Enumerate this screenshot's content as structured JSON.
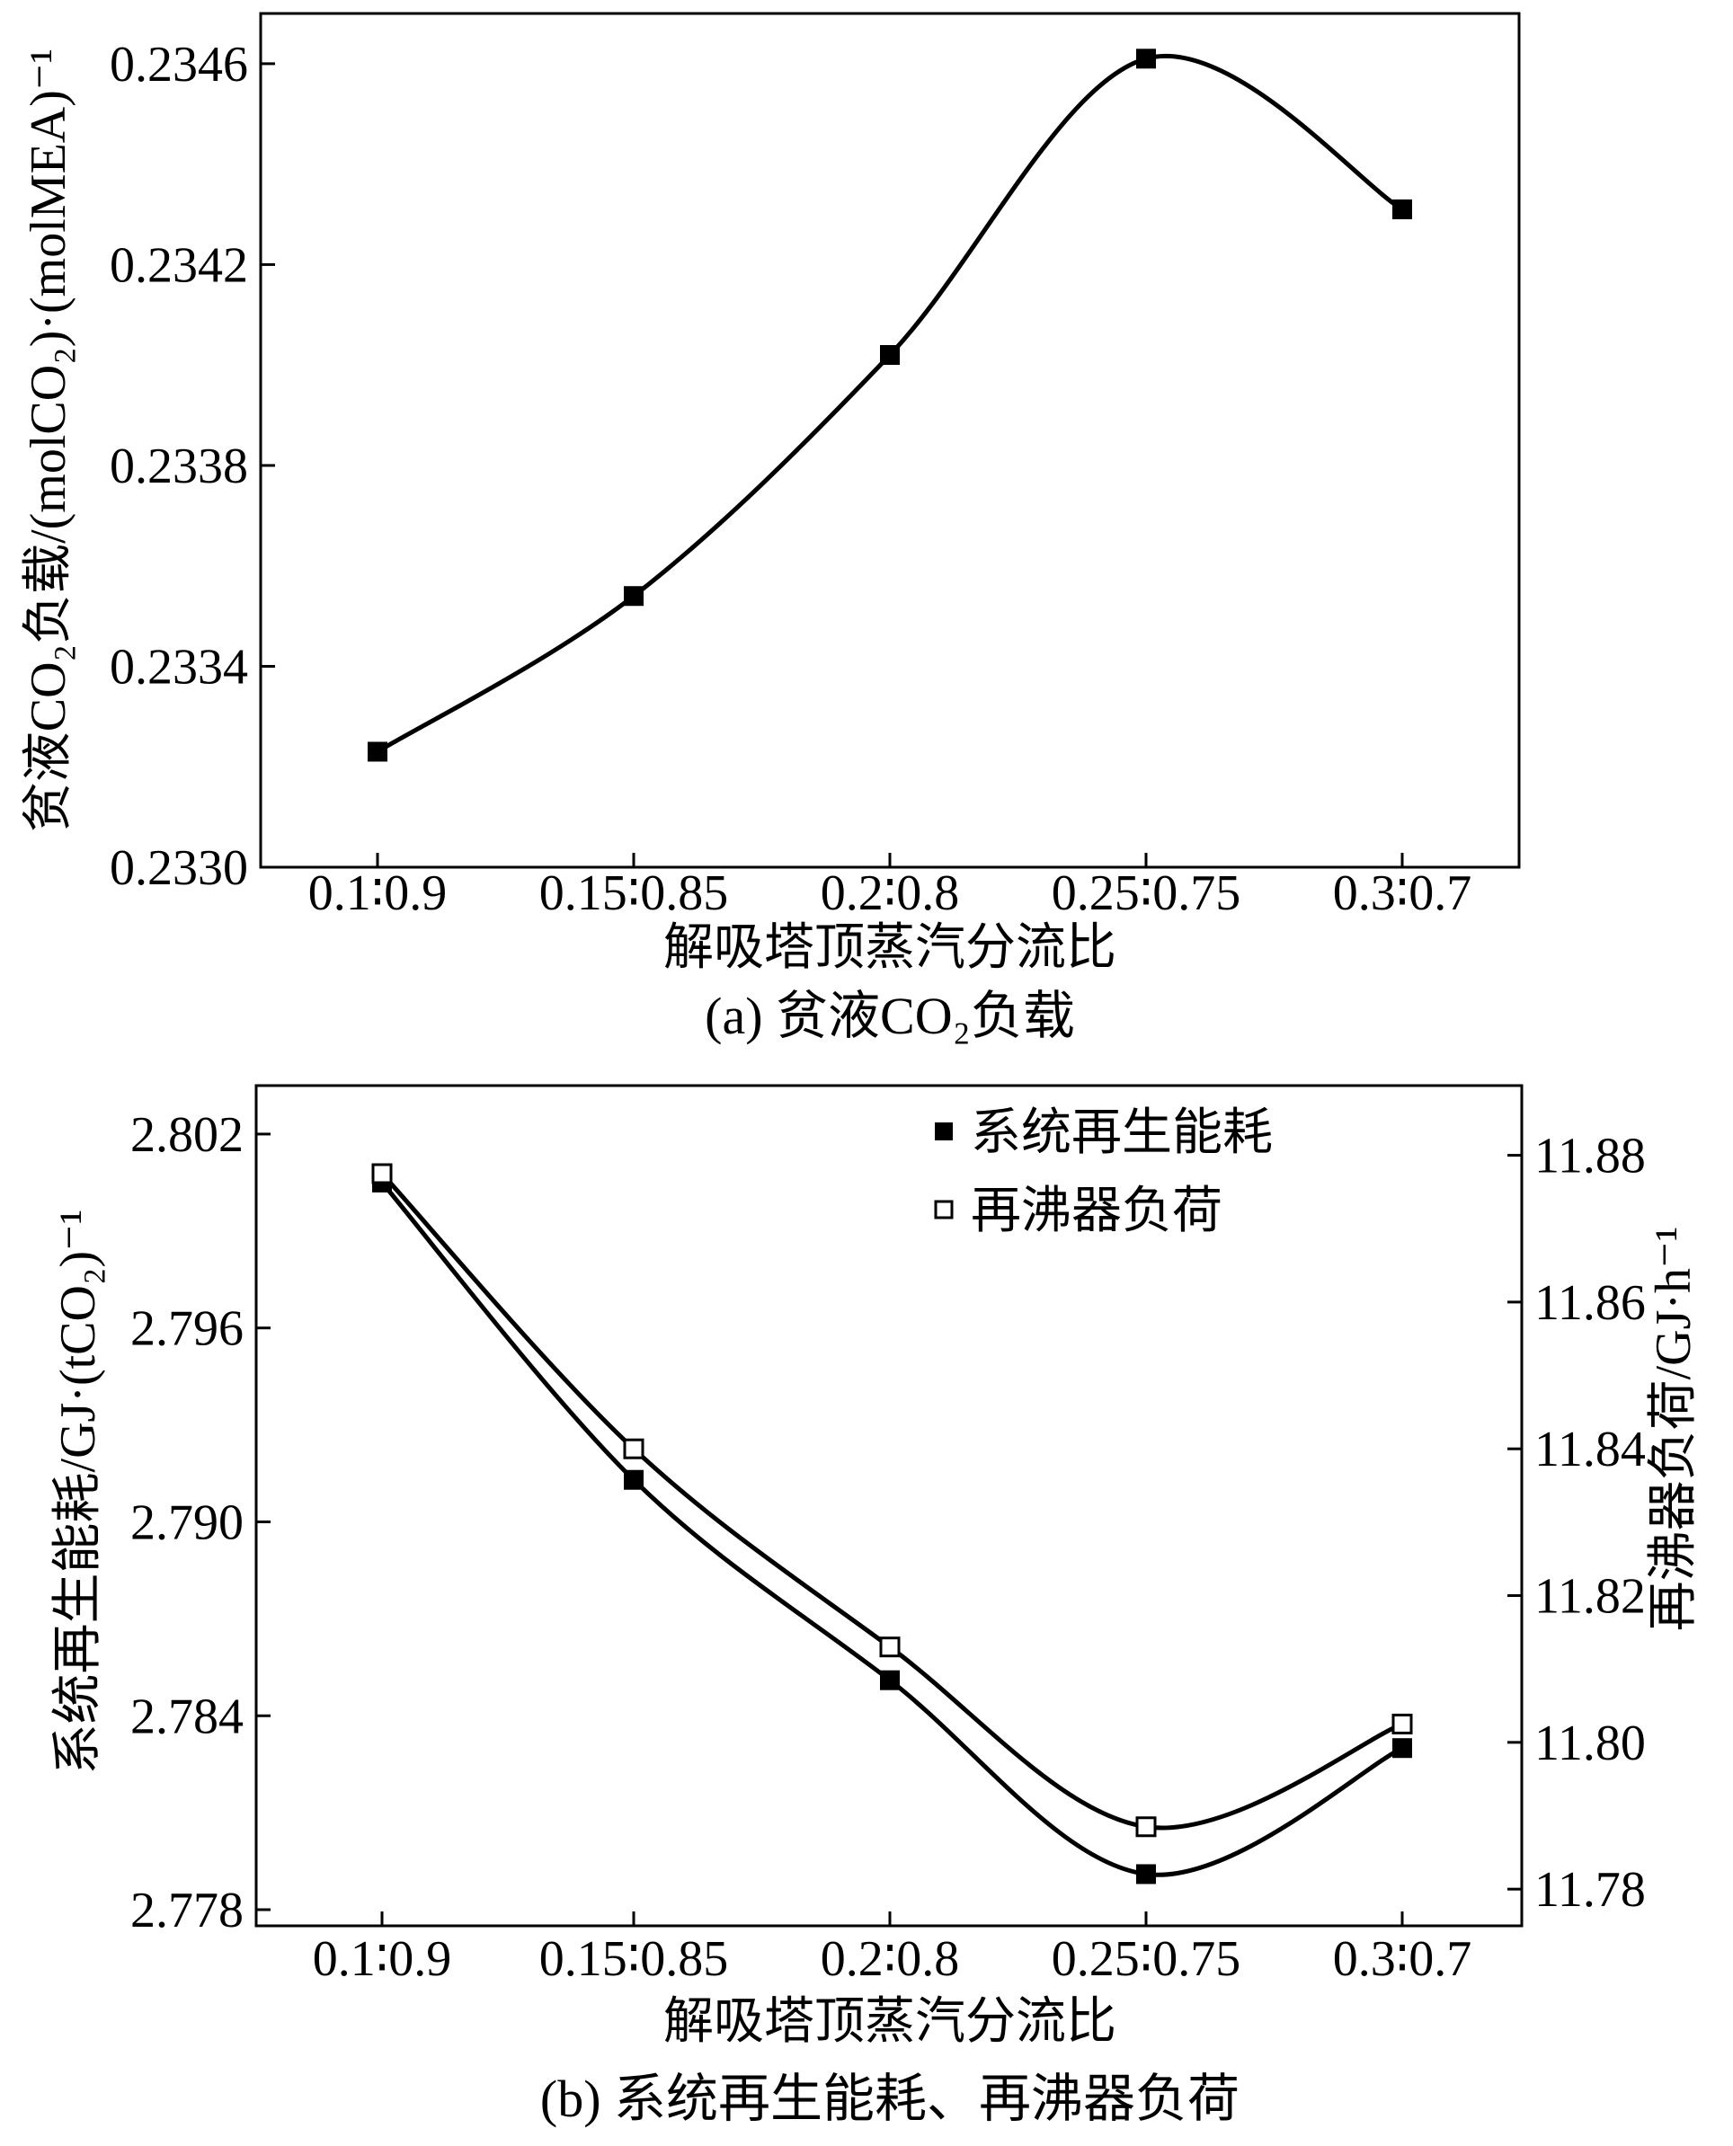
{
  "chart_data": [
    {
      "type": "line",
      "caption": "(a) 贫液CO₂负载",
      "categories": [
        "0.1∶0.9",
        "0.15∶0.85",
        "0.2∶0.8",
        "0.25∶0.75",
        "0.3∶0.7"
      ],
      "xlabel": "解吸塔顶蒸汽分流比",
      "ylabel": "贫液CO₂负载/(molCO₂)·(molMEA)⁻¹",
      "ylim": [
        0.233,
        0.2347
      ],
      "yticks": [
        "0.2330",
        "0.2334",
        "0.2338",
        "0.2342",
        "0.2346"
      ],
      "series": [
        {
          "name": "贫液CO₂负载",
          "marker": "filled-square",
          "values": [
            0.23323,
            0.23354,
            0.23402,
            0.23461,
            0.23431
          ]
        }
      ]
    },
    {
      "type": "line",
      "caption": "(b) 系统再生能耗、再沸器负荷",
      "categories": [
        "0.1∶0.9",
        "0.15∶0.85",
        "0.2∶0.8",
        "0.25∶0.75",
        "0.3∶0.7"
      ],
      "xlabel": "解吸塔顶蒸汽分流比",
      "ylabel_left": "系统再生能耗/GJ·(tCO₂)⁻¹",
      "ylabel_right": "再沸器负荷/GJ·h⁻¹",
      "ylim_left": [
        2.7775,
        2.8035
      ],
      "ylim_right": [
        11.775,
        11.8895
      ],
      "yticks_left": [
        "2.778",
        "2.784",
        "2.790",
        "2.796",
        "2.802"
      ],
      "yticks_right": [
        "11.78",
        "11.80",
        "11.82",
        "11.84",
        "11.86",
        "11.88"
      ],
      "legend": {
        "position": "top-right",
        "entries": [
          "系统再生能耗",
          "再沸器负荷"
        ]
      },
      "series": [
        {
          "name": "系统再生能耗",
          "axis": "left",
          "marker": "filled-square",
          "values": [
            2.8005,
            2.7913,
            2.7851,
            2.7791,
            2.783
          ]
        },
        {
          "name": "再沸器负荷",
          "axis": "right",
          "marker": "open-square",
          "values": [
            11.8775,
            11.84,
            11.813,
            11.7885,
            11.8025
          ]
        }
      ]
    }
  ]
}
